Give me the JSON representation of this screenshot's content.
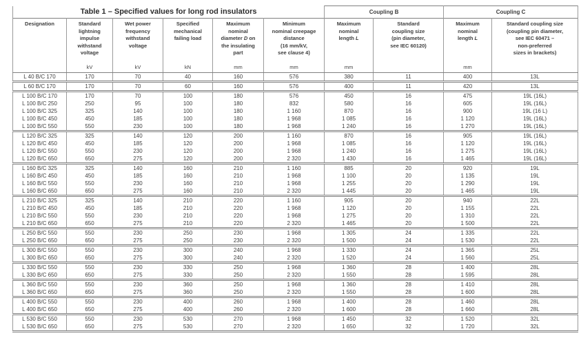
{
  "title": "Table 1 – Specified values for long rod insulators",
  "header": {
    "coupling_b": "Coupling B",
    "coupling_c": "Coupling C",
    "columns": [
      {
        "label": "Designation",
        "unit": ""
      },
      {
        "label": "Standard\nlightning\nimpulse\nwithstand\nvoltage",
        "unit": "kV"
      },
      {
        "label": "Wet power\nfrequency\nwithstand\nvoltage",
        "unit": "kV"
      },
      {
        "label": "Specified\nmechanical\nfailing load",
        "unit": "kN"
      },
      {
        "label_before": "Maximum\nnominal\ndiameter ",
        "label_italic": "D",
        "label_after": " on\nthe insulating\npart",
        "unit": "mm"
      },
      {
        "label": "Minimum\nnominal creepage\ndistance\n(16 mm/kV,\nsee clause 4)",
        "unit": "mm"
      },
      {
        "label_before": "Maximum\nnominal\nlength ",
        "label_italic": "L",
        "label_after": "",
        "unit": "mm"
      },
      {
        "label": "Standard\ncoupling size\n(pin diameter,\nsee IEC 60120)",
        "unit": ""
      },
      {
        "label_before": "Maximum\nnominal\nlength ",
        "label_italic": "L",
        "label_after": "",
        "unit": "mm"
      },
      {
        "label": "Standard coupling size\n(coupling pin diameter,\nsee IEC 60471 –\nnon-preferred\nsizes in brackets)",
        "unit": ""
      }
    ]
  },
  "groups": [
    [
      [
        "L 40 B/C 170",
        "170",
        "70",
        "40",
        "160",
        "576",
        "380",
        "11",
        "400",
        "13L"
      ]
    ],
    [
      [
        "L 60 B/C 170",
        "170",
        "70",
        "60",
        "160",
        "576",
        "400",
        "11",
        "420",
        "13L"
      ]
    ],
    [
      [
        "L 100 B/C 170",
        "170",
        "70",
        "100",
        "180",
        "576",
        "450",
        "16",
        "475",
        "19L (16L)"
      ],
      [
        "L 100 B/C 250",
        "250",
        "95",
        "100",
        "180",
        "832",
        "580",
        "16",
        "605",
        "19L (16L)"
      ],
      [
        "L 100 B/C 325",
        "325",
        "140",
        "100",
        "180",
        "1 160",
        "870",
        "16",
        "900",
        "19L (16 L)"
      ],
      [
        "L 100 B/C 450",
        "450",
        "185",
        "100",
        "180",
        "1 968",
        "1 085",
        "16",
        "1 120",
        "19L (16L)"
      ],
      [
        "L 100 B/C 550",
        "550",
        "230",
        "100",
        "180",
        "1 968",
        "1 240",
        "16",
        "1 270",
        "19L (16L)"
      ]
    ],
    [
      [
        "L 120 B/C 325",
        "325",
        "140",
        "120",
        "200",
        "1 160",
        "870",
        "16",
        "905",
        "19L (16L)"
      ],
      [
        "L 120 B/C 450",
        "450",
        "185",
        "120",
        "200",
        "1 968",
        "1 085",
        "16",
        "1 120",
        "19L (16L)"
      ],
      [
        "L 120 B/C 550",
        "550",
        "230",
        "120",
        "200",
        "1 968",
        "1 240",
        "16",
        "1 275",
        "19L (16L)"
      ],
      [
        "L 120 B/C 650",
        "650",
        "275",
        "120",
        "200",
        "2 320",
        "1 430",
        "16",
        "1 465",
        "19L (16L)"
      ]
    ],
    [
      [
        "L 160 B/C 325",
        "325",
        "140",
        "160",
        "210",
        "1 160",
        "885",
        "20",
        "920",
        "19L"
      ],
      [
        "L 160 B/C 450",
        "450",
        "185",
        "160",
        "210",
        "1 968",
        "1 100",
        "20",
        "1 135",
        "19L"
      ],
      [
        "L 160 B/C 550",
        "550",
        "230",
        "160",
        "210",
        "1 968",
        "1 255",
        "20",
        "1 290",
        "19L"
      ],
      [
        "L 160 B/C 650",
        "650",
        "275",
        "160",
        "210",
        "2 320",
        "1 445",
        "20",
        "1 465",
        "19L"
      ]
    ],
    [
      [
        "L 210 B/C 325",
        "325",
        "140",
        "210",
        "220",
        "1 160",
        "905",
        "20",
        "940",
        "22L"
      ],
      [
        "L 210 B/C 450",
        "450",
        "185",
        "210",
        "220",
        "1 968",
        "1 120",
        "20",
        "1 155",
        "22L"
      ],
      [
        "L 210 B/C 550",
        "550",
        "230",
        "210",
        "220",
        "1 968",
        "1 275",
        "20",
        "1 310",
        "22L"
      ],
      [
        "L 210 B/C 650",
        "650",
        "275",
        "210",
        "220",
        "2 320",
        "1 465",
        "20",
        "1 500",
        "22L"
      ]
    ],
    [
      [
        "L 250 B/C 550",
        "550",
        "230",
        "250",
        "230",
        "1 968",
        "1 305",
        "24",
        "1 335",
        "22L"
      ],
      [
        "L 250 B/C 650",
        "650",
        "275",
        "250",
        "230",
        "2 320",
        "1 500",
        "24",
        "1 530",
        "22L"
      ]
    ],
    [
      [
        "L 300 B/C 550",
        "550",
        "230",
        "300",
        "240",
        "1 968",
        "1 330",
        "24",
        "1 365",
        "25L"
      ],
      [
        "L 300 B/C 650",
        "650",
        "275",
        "300",
        "240",
        "2 320",
        "1 520",
        "24",
        "1 560",
        "25L"
      ]
    ],
    [
      [
        "L 330 B/C 550",
        "550",
        "230",
        "330",
        "250",
        "1 968",
        "1 360",
        "28",
        "1 400",
        "28L"
      ],
      [
        "L 330 B/C 650",
        "650",
        "275",
        "330",
        "250",
        "2 320",
        "1 550",
        "28",
        "1 595",
        "28L"
      ]
    ],
    [
      [
        "L 360 B/C 550",
        "550",
        "230",
        "360",
        "250",
        "1 968",
        "1 360",
        "28",
        "1 410",
        "28L"
      ],
      [
        "L 360 B/C 650",
        "650",
        "275",
        "360",
        "250",
        "2 320",
        "1 550",
        "28",
        "1 600",
        "28L"
      ]
    ],
    [
      [
        "L 400 B/C 550",
        "550",
        "230",
        "400",
        "260",
        "1 968",
        "1 400",
        "28",
        "1 460",
        "28L"
      ],
      [
        "L 400 B/C 650",
        "650",
        "275",
        "400",
        "260",
        "2 320",
        "1 600",
        "28",
        "1 660",
        "28L"
      ]
    ],
    [
      [
        "L 530 B/C 550",
        "550",
        "230",
        "530",
        "270",
        "1 968",
        "1 450",
        "32",
        "1 520",
        "32L"
      ],
      [
        "L 530 B/C 650",
        "650",
        "275",
        "530",
        "270",
        "2 320",
        "1 650",
        "32",
        "1 720",
        "32L"
      ]
    ]
  ]
}
